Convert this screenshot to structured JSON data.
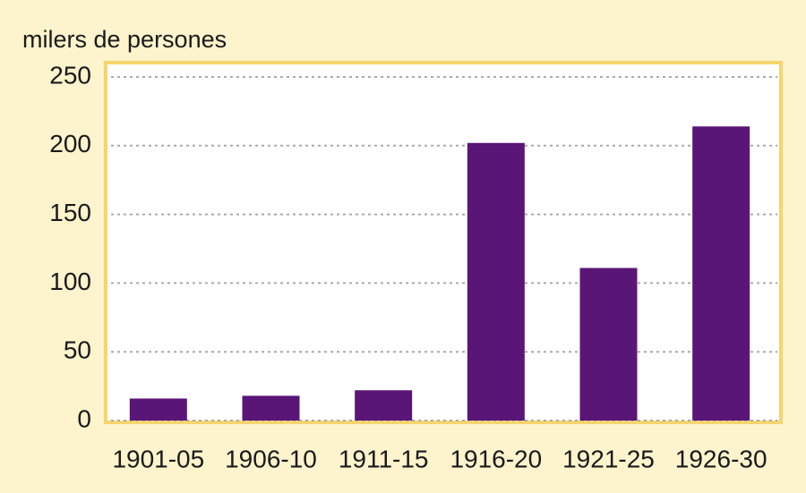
{
  "chart_data": {
    "type": "bar",
    "title": "milers de persones",
    "categories": [
      "1901-05",
      "1906-10",
      "1911-15",
      "1916-20",
      "1921-25",
      "1926-30"
    ],
    "values": [
      16,
      18,
      22,
      202,
      111,
      214
    ],
    "color": "#5a1677",
    "ylim": [
      0,
      250
    ],
    "yticks": [
      0,
      50,
      100,
      150,
      200,
      250
    ],
    "grid": true
  }
}
